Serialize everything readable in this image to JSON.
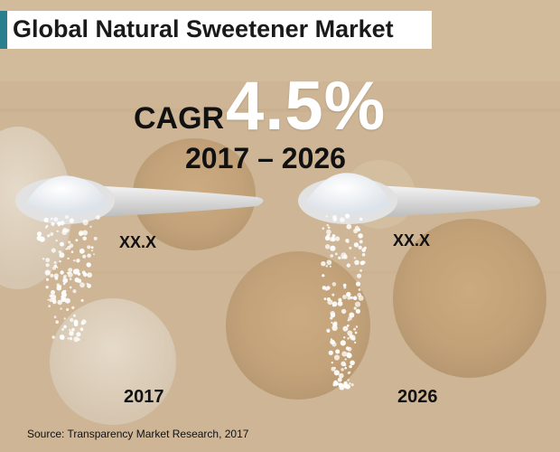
{
  "title": "Global Natural Sweetener Market",
  "cagr": {
    "label": "CAGR",
    "value": "4.5%",
    "period": "2017 – 2026"
  },
  "bars": [
    {
      "year": "2017",
      "value_label": "XX.X"
    },
    {
      "year": "2026",
      "value_label": "XX.X"
    }
  ],
  "source": "Source: Transparency Market Research, 2017",
  "colors": {
    "accent": "#2a7f8f",
    "background": "#c9b291",
    "highlight": "#ffffff"
  }
}
